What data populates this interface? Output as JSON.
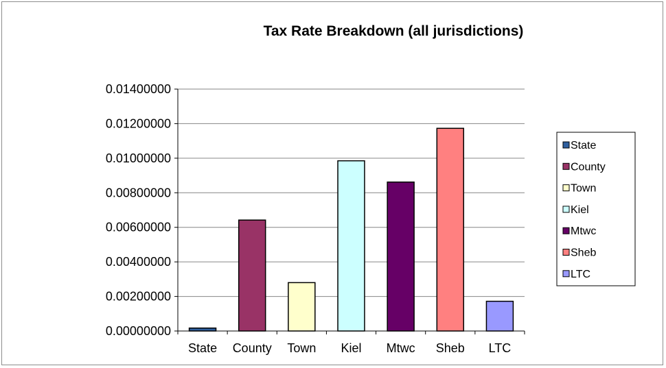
{
  "chart_data": {
    "type": "bar",
    "title": "Tax Rate Breakdown (all jurisdictions)",
    "xlabel": "",
    "ylabel": "",
    "categories": [
      "State",
      "County",
      "Town",
      "Kiel",
      "Mtwc",
      "Sheb",
      "LTC"
    ],
    "values": [
      0.00017,
      0.00642,
      0.0028,
      0.00985,
      0.00862,
      0.01173,
      0.00172
    ],
    "colors": [
      "#2f5f9e",
      "#993366",
      "#ffffcc",
      "#ccffff",
      "#660066",
      "#ff8080",
      "#9999ff"
    ],
    "ylim": [
      0,
      0.014
    ],
    "yticks": [
      "0.00000000",
      "0.00200000",
      "0.00400000",
      "0.00600000",
      "0.00800000",
      "0.01000000",
      "0.01200000",
      "0.01400000"
    ],
    "ytick_values": [
      0,
      0.002,
      0.004,
      0.006,
      0.008,
      0.01,
      0.012,
      0.014
    ],
    "grid": true,
    "legend": {
      "placement": "right",
      "entries": [
        "State",
        "County",
        "Town",
        "Kiel",
        "Mtwc",
        "Sheb",
        "LTC"
      ]
    }
  }
}
